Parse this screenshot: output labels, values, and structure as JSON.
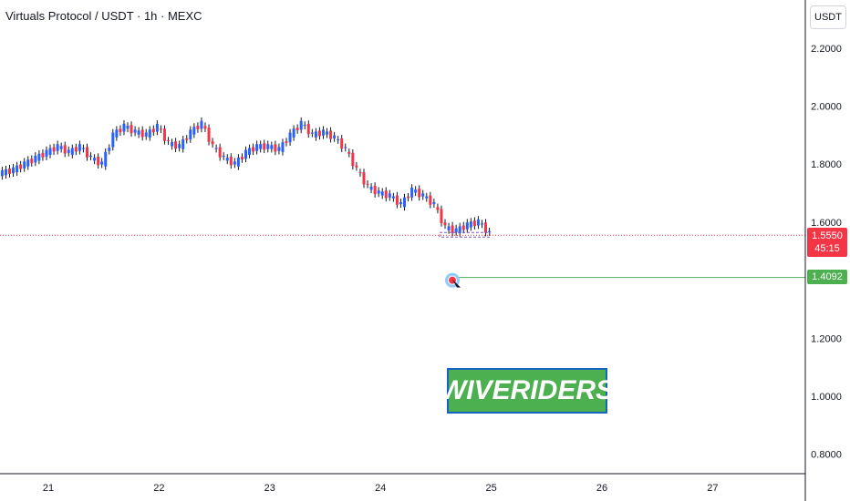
{
  "header": {
    "title": "Virtuals Protocol / USDT · 1h · MEXC",
    "currency": "USDT"
  },
  "current_price": {
    "value": "1.5550",
    "countdown": "45:15",
    "color": "#f23645"
  },
  "target_price": {
    "value": "1.4092",
    "color": "#4caf50"
  },
  "logo": {
    "text": "WIVERIDERS",
    "bg": "#4caf50",
    "border": "#1565c0"
  },
  "colors": {
    "up": "#2962ff",
    "down": "#f23645",
    "wick": "#131722"
  },
  "chart_data": {
    "type": "candlestick",
    "y_ticks": [
      "2.2000",
      "2.0000",
      "1.8000",
      "1.6000",
      "1.2000",
      "1.0000",
      "0.8000"
    ],
    "ylim": [
      0.72,
      2.35
    ],
    "x_ticks": [
      "21",
      "22",
      "23",
      "24",
      "25",
      "26",
      "27"
    ],
    "x_tick_positions": [
      21,
      22,
      23,
      24,
      25,
      26,
      27
    ],
    "grid": false,
    "price_line": 1.555,
    "target_line": 1.4092,
    "close_series": [
      {
        "x": 20.6,
        "close": 1.77
      },
      {
        "x": 20.7,
        "close": 1.78
      },
      {
        "x": 20.8,
        "close": 1.8
      },
      {
        "x": 20.9,
        "close": 1.82
      },
      {
        "x": 21.0,
        "close": 1.84
      },
      {
        "x": 21.1,
        "close": 1.86
      },
      {
        "x": 21.2,
        "close": 1.84
      },
      {
        "x": 21.3,
        "close": 1.86
      },
      {
        "x": 21.4,
        "close": 1.82
      },
      {
        "x": 21.5,
        "close": 1.8
      },
      {
        "x": 21.6,
        "close": 1.9
      },
      {
        "x": 21.7,
        "close": 1.93
      },
      {
        "x": 21.8,
        "close": 1.91
      },
      {
        "x": 21.9,
        "close": 1.9
      },
      {
        "x": 22.0,
        "close": 1.93
      },
      {
        "x": 22.1,
        "close": 1.87
      },
      {
        "x": 22.2,
        "close": 1.86
      },
      {
        "x": 22.3,
        "close": 1.91
      },
      {
        "x": 22.4,
        "close": 1.94
      },
      {
        "x": 22.5,
        "close": 1.86
      },
      {
        "x": 22.6,
        "close": 1.82
      },
      {
        "x": 22.7,
        "close": 1.8
      },
      {
        "x": 22.8,
        "close": 1.84
      },
      {
        "x": 22.9,
        "close": 1.86
      },
      {
        "x": 23.0,
        "close": 1.86
      },
      {
        "x": 23.1,
        "close": 1.85
      },
      {
        "x": 23.2,
        "close": 1.9
      },
      {
        "x": 23.3,
        "close": 1.94
      },
      {
        "x": 23.4,
        "close": 1.9
      },
      {
        "x": 23.5,
        "close": 1.91
      },
      {
        "x": 23.6,
        "close": 1.89
      },
      {
        "x": 23.7,
        "close": 1.85
      },
      {
        "x": 23.8,
        "close": 1.78
      },
      {
        "x": 23.9,
        "close": 1.72
      },
      {
        "x": 24.0,
        "close": 1.7
      },
      {
        "x": 24.1,
        "close": 1.69
      },
      {
        "x": 24.2,
        "close": 1.66
      },
      {
        "x": 24.3,
        "close": 1.71
      },
      {
        "x": 24.4,
        "close": 1.69
      },
      {
        "x": 24.5,
        "close": 1.66
      },
      {
        "x": 24.6,
        "close": 1.58
      },
      {
        "x": 24.7,
        "close": 1.57
      },
      {
        "x": 24.8,
        "close": 1.59
      },
      {
        "x": 24.9,
        "close": 1.6
      },
      {
        "x": 25.0,
        "close": 1.56
      }
    ]
  }
}
